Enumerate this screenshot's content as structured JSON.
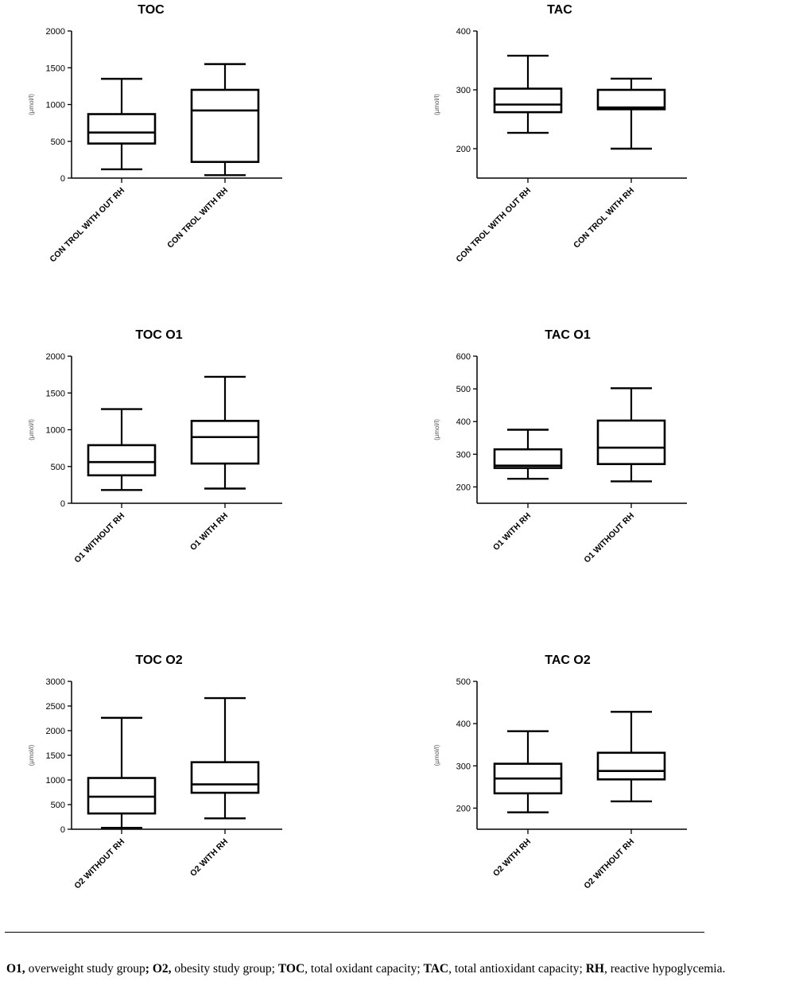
{
  "chart_data": [
    {
      "type": "box",
      "title": "TOC",
      "ylabel": "(µmol/l)",
      "ylim": [
        0,
        2000
      ],
      "yticks": [
        0,
        500,
        1000,
        1500,
        2000
      ],
      "categories": [
        "CON TROL WITH OUT RH",
        "CON TROL WITH RH"
      ],
      "boxes": [
        {
          "min": 120,
          "q1": 470,
          "median": 620,
          "q3": 870,
          "max": 1350
        },
        {
          "min": 40,
          "q1": 220,
          "median": 920,
          "q3": 1200,
          "max": 1550
        }
      ]
    },
    {
      "type": "box",
      "title": "TAC",
      "ylabel": "(µmol/l)",
      "ylim": [
        150,
        400
      ],
      "yticks": [
        200,
        300,
        400
      ],
      "categories": [
        "CON TROL WITH OUT RH",
        "CON TROL WITH RH"
      ],
      "boxes": [
        {
          "min": 227,
          "q1": 262,
          "median": 275,
          "q3": 302,
          "max": 358
        },
        {
          "min": 200,
          "q1": 267,
          "median": 270,
          "q3": 300,
          "max": 319
        }
      ]
    },
    {
      "type": "box",
      "title": "TOC O1",
      "ylabel": "(µmol/l)",
      "ylim": [
        0,
        2000
      ],
      "yticks": [
        0,
        500,
        1000,
        1500,
        2000
      ],
      "categories": [
        "O1 WITHOUT RH",
        "O1 WITH RH"
      ],
      "boxes": [
        {
          "min": 180,
          "q1": 380,
          "median": 560,
          "q3": 790,
          "max": 1280
        },
        {
          "min": 200,
          "q1": 540,
          "median": 900,
          "q3": 1120,
          "max": 1720
        }
      ]
    },
    {
      "type": "box",
      "title": "TAC O1",
      "ylabel": "(µmol/l)",
      "ylim": [
        150,
        600
      ],
      "yticks": [
        200,
        300,
        400,
        500,
        600
      ],
      "categories": [
        "O1 WITH RH",
        "O1 WITHOUT RH"
      ],
      "boxes": [
        {
          "min": 225,
          "q1": 258,
          "median": 265,
          "q3": 315,
          "max": 375
        },
        {
          "min": 217,
          "q1": 270,
          "median": 320,
          "q3": 403,
          "max": 502
        }
      ]
    },
    {
      "type": "box",
      "title": "TOC O2",
      "ylabel": "(µmol/l)",
      "ylim": [
        0,
        3000
      ],
      "yticks": [
        0,
        500,
        1000,
        1500,
        2000,
        2500,
        3000
      ],
      "categories": [
        "O2 WITHOUT RH",
        "O2 WITH RH"
      ],
      "boxes": [
        {
          "min": 30,
          "q1": 320,
          "median": 660,
          "q3": 1040,
          "max": 2260
        },
        {
          "min": 220,
          "q1": 740,
          "median": 910,
          "q3": 1360,
          "max": 2660
        }
      ]
    },
    {
      "type": "box",
      "title": "TAC O2",
      "ylabel": "(µmol/l)",
      "ylim": [
        150,
        500
      ],
      "yticks": [
        200,
        300,
        400,
        500
      ],
      "categories": [
        "O2 WITH RH",
        "O2 WITHOUT RH"
      ],
      "boxes": [
        {
          "min": 190,
          "q1": 235,
          "median": 270,
          "q3": 305,
          "max": 382
        },
        {
          "min": 216,
          "q1": 268,
          "median": 288,
          "q3": 331,
          "max": 428
        }
      ]
    }
  ],
  "caption": [
    {
      "text": "O1,",
      "bold": true
    },
    {
      "text": " overweight study group",
      "bold": false
    },
    {
      "text": "; O2,",
      "bold": true
    },
    {
      "text": " obesity study group; ",
      "bold": false
    },
    {
      "text": "TOC",
      "bold": true
    },
    {
      "text": ", total oxidant capacity; ",
      "bold": false
    },
    {
      "text": "TAC",
      "bold": true
    },
    {
      "text": ", total antioxidant capacity; ",
      "bold": false
    },
    {
      "text": "RH",
      "bold": true
    },
    {
      "text": ", reactive hypoglycemia.",
      "bold": false
    }
  ]
}
